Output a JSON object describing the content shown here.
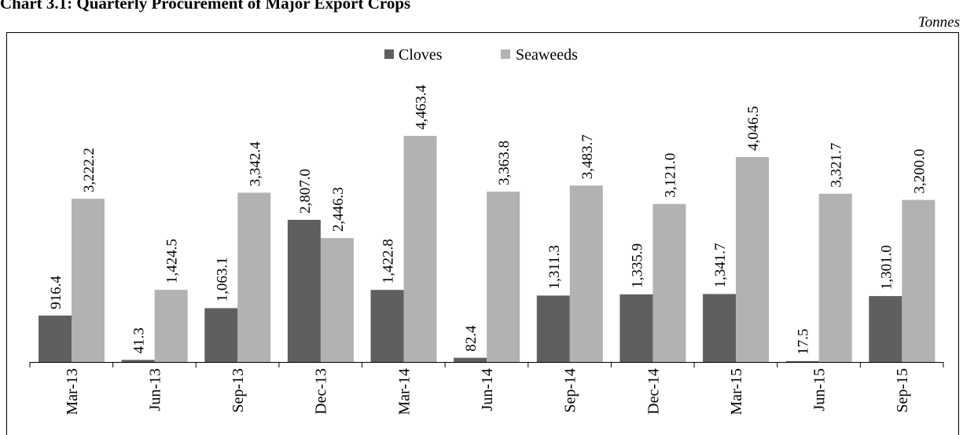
{
  "title": "Chart 3.1: Quarterly Procurement of Major Export Crops",
  "unit": "Tonnes",
  "colors": {
    "cloves": "#5f5f5f",
    "seaweeds": "#b2b2b2",
    "frame": "#000000"
  },
  "chart_data": {
    "type": "bar",
    "title": "Chart 3.1: Quarterly Procurement of Major Export Crops",
    "ylabel": "Tonnes",
    "legend_position": "top-center",
    "grid": false,
    "ylim": [
      0,
      5000
    ],
    "categories": [
      "Mar-13",
      "Jun-13",
      "Sep-13",
      "Dec-13",
      "Mar-14",
      "Jun-14",
      "Sep-14",
      "Dec-14",
      "Mar-15",
      "Jun-15",
      "Sep-15"
    ],
    "series": [
      {
        "name": "Cloves",
        "values": [
          916.4,
          41.3,
          1063.1,
          2807.0,
          1422.8,
          82.4,
          1311.3,
          1335.9,
          1341.7,
          17.5,
          1301.0
        ],
        "labels": [
          "916.4",
          "41.3",
          "1,063.1",
          "2,807.0",
          "1,422.8",
          "82.4",
          "1,311.3",
          "1,335.9",
          "1,341.7",
          "17.5",
          "1,301.0"
        ]
      },
      {
        "name": "Seaweeds",
        "values": [
          3222.2,
          1424.5,
          3342.4,
          2446.3,
          4463.4,
          3363.8,
          3483.7,
          3121.0,
          4046.5,
          3321.7,
          3200.0
        ],
        "labels": [
          "3,222.2",
          "1,424.5",
          "3,342.4",
          "2,446.3",
          "4,463.4",
          "3,363.8",
          "3,483.7",
          "3,121.0",
          "4,046.5",
          "3,321.7",
          "3,200.0"
        ]
      }
    ]
  }
}
